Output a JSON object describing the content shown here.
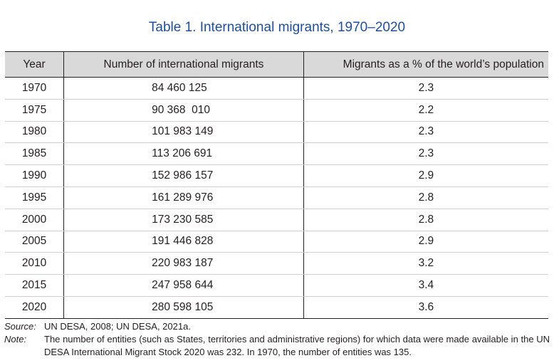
{
  "title": "Table 1. International migrants, 1970–2020",
  "table": {
    "headers": [
      "Year",
      "Number of international migrants",
      "Migrants as a % of the world’s population"
    ],
    "rows": [
      {
        "year": "1970",
        "migrants": "84 460 125",
        "percent": "2.3"
      },
      {
        "year": "1975",
        "migrants": "90 368  010",
        "percent": "2.2"
      },
      {
        "year": "1980",
        "migrants": "101 983 149",
        "percent": "2.3"
      },
      {
        "year": "1985",
        "migrants": "113 206 691",
        "percent": "2.3"
      },
      {
        "year": "1990",
        "migrants": "152 986 157",
        "percent": "2.9"
      },
      {
        "year": "1995",
        "migrants": "161 289 976",
        "percent": "2.8"
      },
      {
        "year": "2000",
        "migrants": "173 230 585",
        "percent": "2.8"
      },
      {
        "year": "2005",
        "migrants": "191 446 828",
        "percent": "2.9"
      },
      {
        "year": "2010",
        "migrants": "220 983 187",
        "percent": "3.2"
      },
      {
        "year": "2015",
        "migrants": "247 958 644",
        "percent": "3.4"
      },
      {
        "year": "2020",
        "migrants": "280 598 105",
        "percent": "3.6"
      }
    ]
  },
  "source": {
    "label": "Source:",
    "text": "UN DESA, 2008; UN DESA, 2021a."
  },
  "note": {
    "label": "Note:",
    "text": "The number of entities (such as States, territories and administrative regions) for which data were made available in the UN DESA International Migrant Stock 2020 was 232. In 1970, the number of entities was 135."
  }
}
